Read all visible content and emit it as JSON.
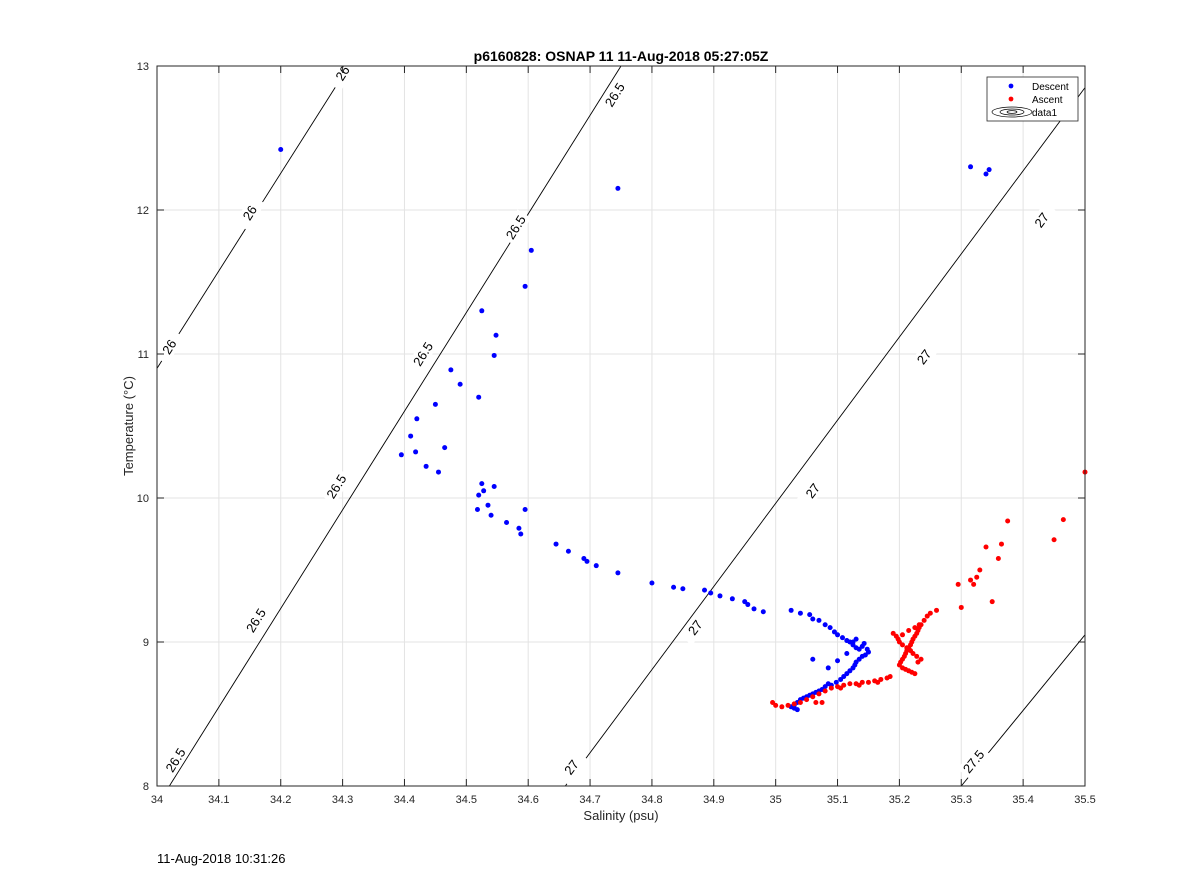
{
  "chart_data": {
    "type": "scatter",
    "title": "p6160828: OSNAP 11 11-Aug-2018 05:27:05Z",
    "xlabel": "Salinity (psu)",
    "ylabel": "Temperature (°C)",
    "xlim": [
      34,
      35.5
    ],
    "ylim": [
      8,
      13
    ],
    "xticks": [
      "34",
      "34.1",
      "34.2",
      "34.3",
      "34.4",
      "34.5",
      "34.6",
      "34.7",
      "34.8",
      "34.9",
      "35",
      "35.1",
      "35.2",
      "35.3",
      "35.4",
      "35.5"
    ],
    "yticks": [
      "8",
      "9",
      "10",
      "11",
      "12",
      "13"
    ],
    "grid": true,
    "legend_position": "top-right",
    "legend": [
      "Descent",
      "Ascent",
      "data1"
    ],
    "series": [
      {
        "name": "Descent",
        "color": "#0000ff",
        "x": [
          34.745,
          34.2,
          35.315,
          35.34,
          35.345,
          34.605,
          34.595,
          34.525,
          34.548,
          34.545,
          34.475,
          34.49,
          34.52,
          34.45,
          34.42,
          34.41,
          34.395,
          34.418,
          34.465,
          34.435,
          34.455,
          34.525,
          34.545,
          34.528,
          34.52,
          34.535,
          34.518,
          34.54,
          34.565,
          34.585,
          34.595,
          34.588,
          34.645,
          34.665,
          34.69,
          34.695,
          34.71,
          34.745,
          34.8,
          34.835,
          34.85,
          34.885,
          34.895,
          34.91,
          34.93,
          34.95,
          34.955,
          34.965,
          34.98,
          35.025,
          35.04,
          35.055,
          35.06,
          35.07,
          35.08,
          35.088,
          35.095,
          35.1,
          35.108,
          35.115,
          35.12,
          35.125,
          35.13,
          35.135,
          35.14,
          35.143,
          35.148,
          35.15,
          35.145,
          35.14,
          35.135,
          35.13,
          35.128,
          35.125,
          35.12,
          35.115,
          35.11,
          35.105,
          35.098,
          35.09,
          35.085,
          35.08,
          35.075,
          35.07,
          35.065,
          35.06,
          35.055,
          35.05,
          35.045,
          35.04,
          35.035,
          35.03,
          35.025,
          35.03,
          35.035,
          35.06,
          35.085,
          35.1,
          35.115,
          35.125,
          35.13
        ],
        "y": [
          12.15,
          12.42,
          12.3,
          12.25,
          12.28,
          11.72,
          11.47,
          11.3,
          11.13,
          10.99,
          10.89,
          10.79,
          10.7,
          10.65,
          10.55,
          10.43,
          10.3,
          10.32,
          10.35,
          10.22,
          10.18,
          10.1,
          10.08,
          10.05,
          10.02,
          9.95,
          9.92,
          9.88,
          9.83,
          9.79,
          9.92,
          9.75,
          9.68,
          9.63,
          9.58,
          9.56,
          9.53,
          9.48,
          9.41,
          9.38,
          9.37,
          9.36,
          9.34,
          9.32,
          9.3,
          9.28,
          9.26,
          9.23,
          9.21,
          9.22,
          9.2,
          9.19,
          9.16,
          9.15,
          9.12,
          9.1,
          9.07,
          9.05,
          9.03,
          9.01,
          9.0,
          8.98,
          8.96,
          8.95,
          8.97,
          8.99,
          8.95,
          8.93,
          8.91,
          8.9,
          8.88,
          8.86,
          8.84,
          8.82,
          8.8,
          8.78,
          8.76,
          8.74,
          8.72,
          8.7,
          8.71,
          8.69,
          8.67,
          8.66,
          8.65,
          8.64,
          8.63,
          8.62,
          8.61,
          8.6,
          8.58,
          8.56,
          8.55,
          8.54,
          8.53,
          8.88,
          8.82,
          8.87,
          8.92,
          9.0,
          9.02
        ]
      },
      {
        "name": "Ascent",
        "color": "#ff0000",
        "x": [
          35.5,
          35.465,
          35.45,
          35.375,
          35.365,
          35.36,
          35.34,
          35.35,
          35.33,
          35.325,
          35.32,
          35.315,
          35.295,
          35.3,
          35.26,
          35.25,
          35.245,
          35.24,
          35.235,
          35.232,
          35.23,
          35.228,
          35.225,
          35.222,
          35.22,
          35.218,
          35.215,
          35.212,
          35.21,
          35.208,
          35.205,
          35.202,
          35.2,
          35.205,
          35.21,
          35.215,
          35.22,
          35.225,
          35.23,
          35.235,
          35.228,
          35.222,
          35.218,
          35.212,
          35.205,
          35.2,
          35.198,
          35.195,
          35.19,
          35.185,
          35.18,
          35.17,
          35.16,
          35.15,
          35.14,
          35.13,
          35.12,
          35.11,
          35.1,
          35.09,
          35.08,
          35.07,
          35.06,
          35.05,
          35.04,
          35.03,
          35.02,
          35.01,
          35.0,
          34.995,
          35.075,
          35.065,
          35.105,
          35.135,
          35.165,
          35.205,
          35.215,
          35.225,
          35.232
        ],
        "y": [
          10.18,
          9.85,
          9.71,
          9.84,
          9.68,
          9.58,
          9.66,
          9.28,
          9.5,
          9.45,
          9.4,
          9.43,
          9.4,
          9.24,
          9.22,
          9.2,
          9.18,
          9.15,
          9.12,
          9.1,
          9.08,
          9.06,
          9.04,
          9.02,
          9.0,
          8.98,
          8.96,
          8.94,
          8.92,
          8.9,
          8.88,
          8.86,
          8.84,
          8.82,
          8.81,
          8.8,
          8.79,
          8.78,
          8.86,
          8.88,
          8.9,
          8.92,
          8.94,
          8.96,
          8.98,
          9.0,
          9.02,
          9.04,
          9.06,
          8.76,
          8.75,
          8.74,
          8.73,
          8.72,
          8.72,
          8.71,
          8.71,
          8.7,
          8.69,
          8.68,
          8.66,
          8.64,
          8.62,
          8.6,
          8.58,
          8.57,
          8.56,
          8.55,
          8.56,
          8.58,
          8.58,
          8.58,
          8.68,
          8.7,
          8.72,
          9.05,
          9.08,
          9.1,
          9.12
        ]
      }
    ],
    "contours": [
      {
        "level": "26",
        "x1": 34.0,
        "y1": 10.9,
        "x2": 34.31,
        "y2": 13.0,
        "labels": [
          {
            "text": "26",
            "x": 34.02,
            "y": 11.05
          },
          {
            "text": "26",
            "x": 34.15,
            "y": 11.98
          },
          {
            "text": "26",
            "x": 34.3,
            "y": 12.95
          }
        ]
      },
      {
        "level": "26.5",
        "x1": 34.02,
        "y1": 8.0,
        "x2": 34.75,
        "y2": 13.0,
        "labels": [
          {
            "text": "26.5",
            "x": 34.03,
            "y": 8.18
          },
          {
            "text": "26.5",
            "x": 34.16,
            "y": 9.15
          },
          {
            "text": "26.5",
            "x": 34.29,
            "y": 10.08
          },
          {
            "text": "26.5",
            "x": 34.43,
            "y": 11.0
          },
          {
            "text": "26.5",
            "x": 34.58,
            "y": 11.88
          },
          {
            "text": "26.5",
            "x": 34.74,
            "y": 12.8
          }
        ]
      },
      {
        "level": "27",
        "x1": 34.66,
        "y1": 8.0,
        "x2": 35.5,
        "y2": 12.85,
        "labels": [
          {
            "text": "27",
            "x": 34.67,
            "y": 8.13
          },
          {
            "text": "27",
            "x": 34.87,
            "y": 9.1
          },
          {
            "text": "27",
            "x": 35.06,
            "y": 10.05
          },
          {
            "text": "27",
            "x": 35.24,
            "y": 10.98
          },
          {
            "text": "27",
            "x": 35.43,
            "y": 11.93
          }
        ]
      },
      {
        "level": "27.5",
        "x1": 35.3,
        "y1": 8.0,
        "x2": 35.5,
        "y2": 9.05,
        "labels": [
          {
            "text": "27.5",
            "x": 35.32,
            "y": 8.17
          }
        ]
      }
    ]
  },
  "footer": {
    "timestamp": "11-Aug-2018 10:31:26"
  }
}
